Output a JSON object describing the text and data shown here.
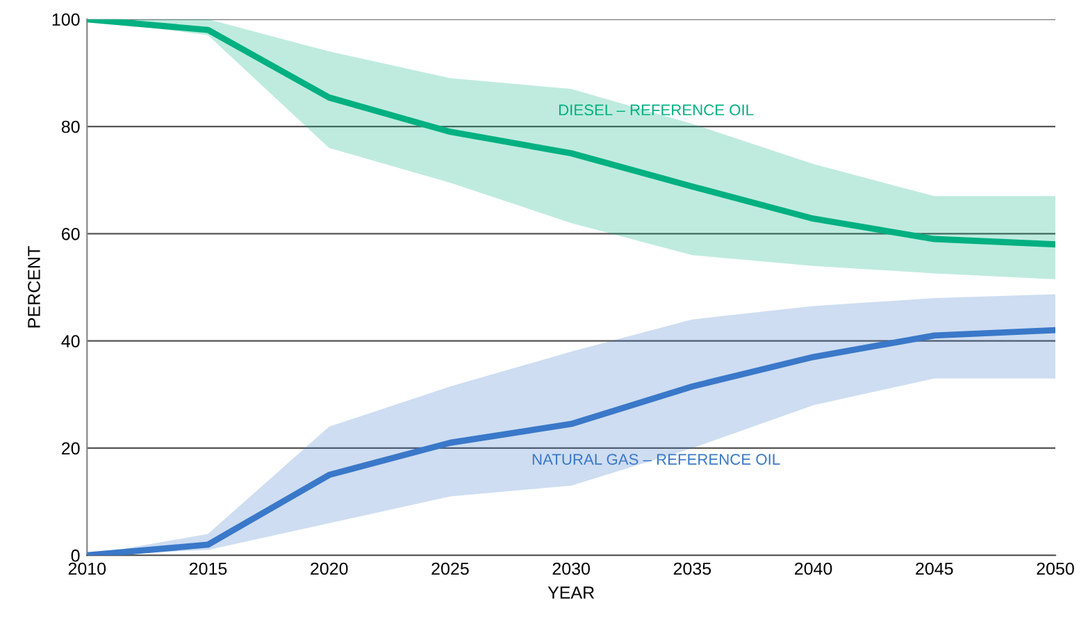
{
  "chart_data": {
    "type": "line",
    "xlabel": "YEAR",
    "ylabel": "PERCENT",
    "x": [
      2010,
      2015,
      2020,
      2025,
      2030,
      2035,
      2040,
      2045,
      2050
    ],
    "series": [
      {
        "name": "DIESEL – REFERENCE OIL",
        "color": "#00b080",
        "values": [
          100,
          98,
          85.4,
          79,
          75,
          68.8,
          62.8,
          59,
          58
        ],
        "upper": [
          100,
          100,
          94,
          89,
          87,
          80.5,
          73,
          67,
          67
        ],
        "lower": [
          100,
          97,
          76,
          69.5,
          62,
          56,
          54,
          52.6,
          51.5
        ]
      },
      {
        "name": "NATURAL GAS – REFERENCE OIL",
        "color": "#3a78c9",
        "values": [
          0,
          2,
          15,
          21,
          24.5,
          31.5,
          37,
          41,
          42
        ],
        "upper": [
          0,
          4,
          24,
          31.5,
          38,
          44,
          46.5,
          48,
          48.7
        ],
        "lower": [
          0,
          1,
          6,
          11,
          13,
          20,
          28,
          33,
          33
        ]
      }
    ],
    "xlim": [
      2010,
      2050
    ],
    "ylim": [
      0,
      100
    ],
    "xticks": [
      2010,
      2015,
      2020,
      2025,
      2030,
      2035,
      2040,
      2045,
      2050
    ],
    "yticks": [
      0,
      20,
      40,
      60,
      80,
      100
    ],
    "grid": "y",
    "legend": false,
    "marker": "none",
    "line_style": "solid"
  }
}
